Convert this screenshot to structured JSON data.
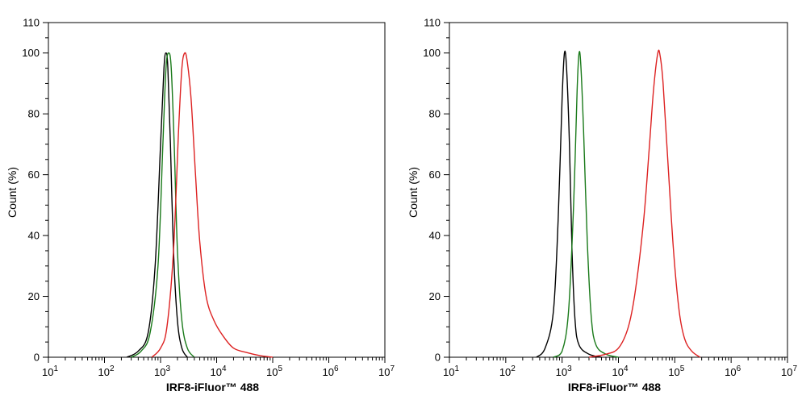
{
  "chart_data": [
    {
      "type": "line",
      "xlabel": "IRF8-iFluor™ 488",
      "ylabel": "Count  (%)",
      "xscale": "log",
      "xlim": [
        10,
        10000000
      ],
      "ylim": [
        0,
        110
      ],
      "x_ticks": [
        {
          "base": "10",
          "exp": "1"
        },
        {
          "base": "10",
          "exp": "2"
        },
        {
          "base": "10",
          "exp": "3"
        },
        {
          "base": "10",
          "exp": "4"
        },
        {
          "base": "10",
          "exp": "5"
        },
        {
          "base": "10",
          "exp": "6"
        },
        {
          "base": "10",
          "exp": "7"
        }
      ],
      "y_ticks": [
        "0",
        "20",
        "40",
        "60",
        "80",
        "100",
        "110"
      ],
      "grid": false,
      "series": [
        {
          "color": "#000000",
          "x": [
            250,
            400,
            600,
            800,
            1000,
            1150,
            1250,
            1350,
            1500,
            1700,
            2000,
            2400,
            3000
          ],
          "y": [
            0,
            2,
            8,
            30,
            70,
            95,
            100,
            95,
            70,
            35,
            12,
            3,
            0
          ]
        },
        {
          "color": "#1a7a1a",
          "x": [
            300,
            450,
            650,
            900,
            1100,
            1250,
            1400,
            1550,
            1750,
            2000,
            2400,
            3000,
            4000
          ],
          "y": [
            0,
            2,
            8,
            30,
            70,
            95,
            100,
            95,
            70,
            35,
            12,
            3,
            0
          ]
        },
        {
          "color": "#dd2222",
          "x": [
            700,
            1000,
            1300,
            1700,
            2100,
            2400,
            2700,
            3000,
            3500,
            4200,
            5000,
            6500,
            9000,
            13000,
            20000,
            35000,
            60000,
            100000
          ],
          "y": [
            0,
            3,
            10,
            35,
            75,
            95,
            100,
            97,
            85,
            60,
            38,
            20,
            12,
            7,
            3,
            1.5,
            0.5,
            0
          ]
        }
      ]
    },
    {
      "type": "line",
      "xlabel": "IRF8-iFluor™ 488",
      "ylabel": "Count  (%)",
      "xscale": "log",
      "xlim": [
        10,
        10000000
      ],
      "ylim": [
        0,
        110
      ],
      "x_ticks": [
        {
          "base": "10",
          "exp": "1"
        },
        {
          "base": "10",
          "exp": "2"
        },
        {
          "base": "10",
          "exp": "3"
        },
        {
          "base": "10",
          "exp": "4"
        },
        {
          "base": "10",
          "exp": "5"
        },
        {
          "base": "10",
          "exp": "6"
        },
        {
          "base": "10",
          "exp": "7"
        }
      ],
      "y_ticks": [
        "0",
        "20",
        "40",
        "60",
        "80",
        "100",
        "110"
      ],
      "grid": false,
      "series": [
        {
          "color": "#000000",
          "x": [
            350,
            500,
            700,
            850,
            1000,
            1100,
            1200,
            1350,
            1500,
            1700,
            2000,
            3000,
            5000
          ],
          "y": [
            0,
            3,
            15,
            45,
            85,
            100,
            95,
            70,
            35,
            12,
            4,
            1,
            0
          ]
        },
        {
          "color": "#1a7a1a",
          "x": [
            700,
            1000,
            1300,
            1600,
            1850,
            2000,
            2150,
            2400,
            2800,
            3300,
            4000,
            6000,
            10000
          ],
          "y": [
            0,
            2,
            15,
            50,
            88,
            100,
            96,
            75,
            38,
            13,
            4,
            1,
            0
          ]
        },
        {
          "color": "#dd2222",
          "x": [
            3000,
            6000,
            10000,
            15000,
            20000,
            28000,
            35000,
            42000,
            50000,
            55000,
            62000,
            75000,
            95000,
            120000,
            150000,
            200000,
            280000
          ],
          "y": [
            0,
            1,
            3,
            10,
            22,
            45,
            68,
            88,
            100,
            99,
            90,
            65,
            35,
            15,
            6,
            2,
            0
          ]
        }
      ]
    }
  ]
}
